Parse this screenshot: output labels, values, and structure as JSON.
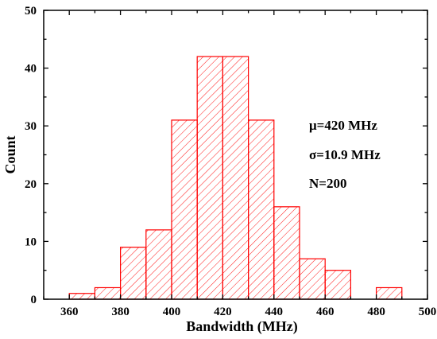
{
  "chart_data": {
    "type": "bar",
    "subtype": "histogram",
    "xlabel": "Bandwidth (MHz)",
    "ylabel": "Count",
    "xlim": [
      350,
      500
    ],
    "ylim": [
      0,
      50
    ],
    "x_ticks": [
      360,
      380,
      400,
      420,
      440,
      460,
      480,
      500
    ],
    "y_ticks": [
      0,
      10,
      20,
      30,
      40,
      50
    ],
    "bin_width": 10,
    "bins": [
      {
        "start": 360,
        "end": 370,
        "count": 1
      },
      {
        "start": 370,
        "end": 380,
        "count": 2
      },
      {
        "start": 380,
        "end": 390,
        "count": 9
      },
      {
        "start": 390,
        "end": 400,
        "count": 12
      },
      {
        "start": 400,
        "end": 410,
        "count": 31
      },
      {
        "start": 410,
        "end": 420,
        "count": 42
      },
      {
        "start": 420,
        "end": 430,
        "count": 42
      },
      {
        "start": 430,
        "end": 440,
        "count": 31
      },
      {
        "start": 440,
        "end": 450,
        "count": 16
      },
      {
        "start": 450,
        "end": 460,
        "count": 7
      },
      {
        "start": 460,
        "end": 470,
        "count": 5
      },
      {
        "start": 480,
        "end": 490,
        "count": 2
      }
    ],
    "bar_color": "#ff0000",
    "hatch": "diagonal",
    "annotations": [
      "μ=420 MHz",
      "σ=10.9 MHz",
      "N=200"
    ],
    "grid": false,
    "legend": "none"
  }
}
